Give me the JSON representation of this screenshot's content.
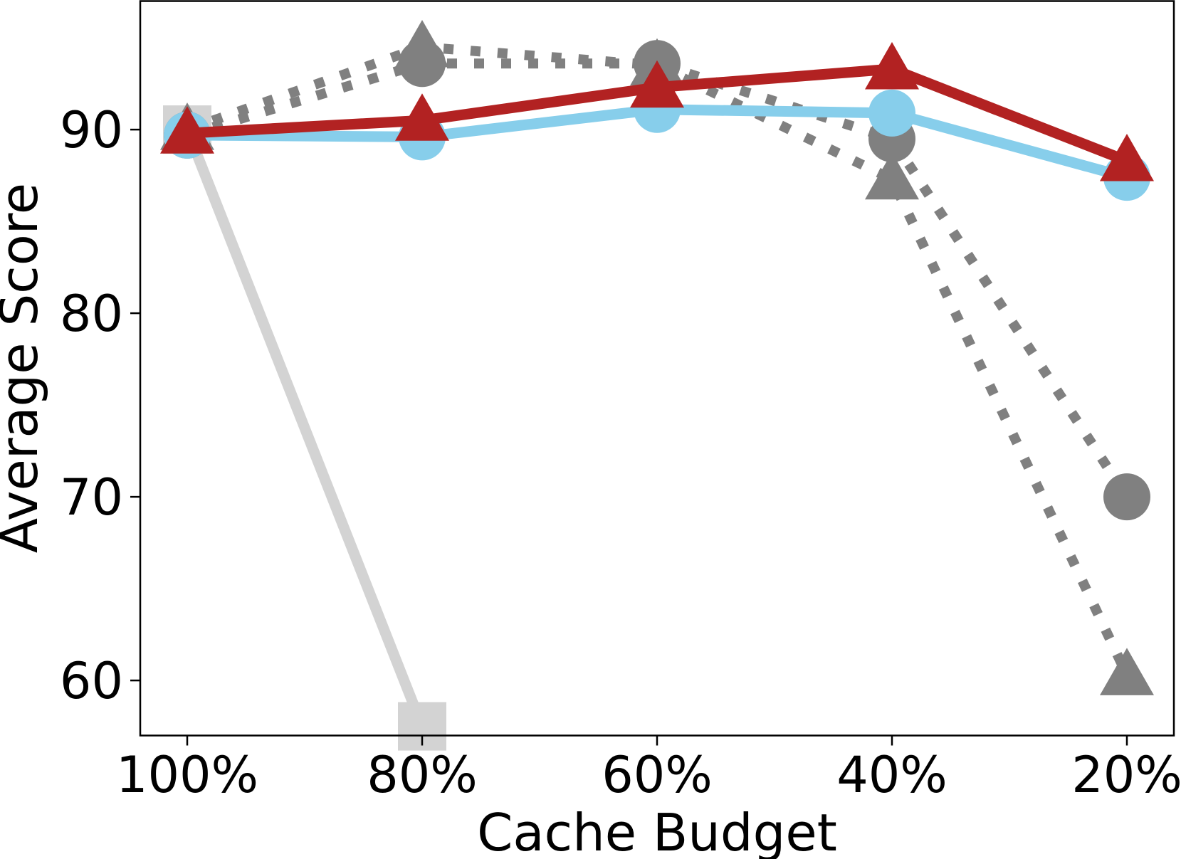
{
  "chart_data": {
    "type": "line",
    "title": "",
    "xlabel": "Cache Budget",
    "ylabel": "Average Score",
    "categories": [
      "100%",
      "80%",
      "60%",
      "40%",
      "20%"
    ],
    "ylim": [
      57,
      97
    ],
    "yticks": [
      60,
      70,
      80,
      90
    ],
    "grid": false,
    "legend": "none",
    "series": [
      {
        "color": "#d3d3d3",
        "marker": "square",
        "linestyle": "solid",
        "values": [
          90.0,
          57.5,
          null,
          null,
          null
        ]
      },
      {
        "color": "#808080",
        "marker": "triangle",
        "linestyle": "dotted",
        "values": [
          90.0,
          94.5,
          93.5,
          87.3,
          60.3
        ]
      },
      {
        "color": "#808080",
        "marker": "circle",
        "linestyle": "dotted",
        "values": [
          89.7,
          93.6,
          93.6,
          89.5,
          70.0
        ]
      },
      {
        "color": "#87ceeb",
        "marker": "circle",
        "linestyle": "solid",
        "values": [
          89.7,
          89.6,
          91.1,
          90.9,
          87.4
        ]
      },
      {
        "color": "#b22222",
        "marker": "triangle",
        "linestyle": "solid",
        "values": [
          89.8,
          90.5,
          92.3,
          93.3,
          88.3
        ]
      }
    ]
  }
}
